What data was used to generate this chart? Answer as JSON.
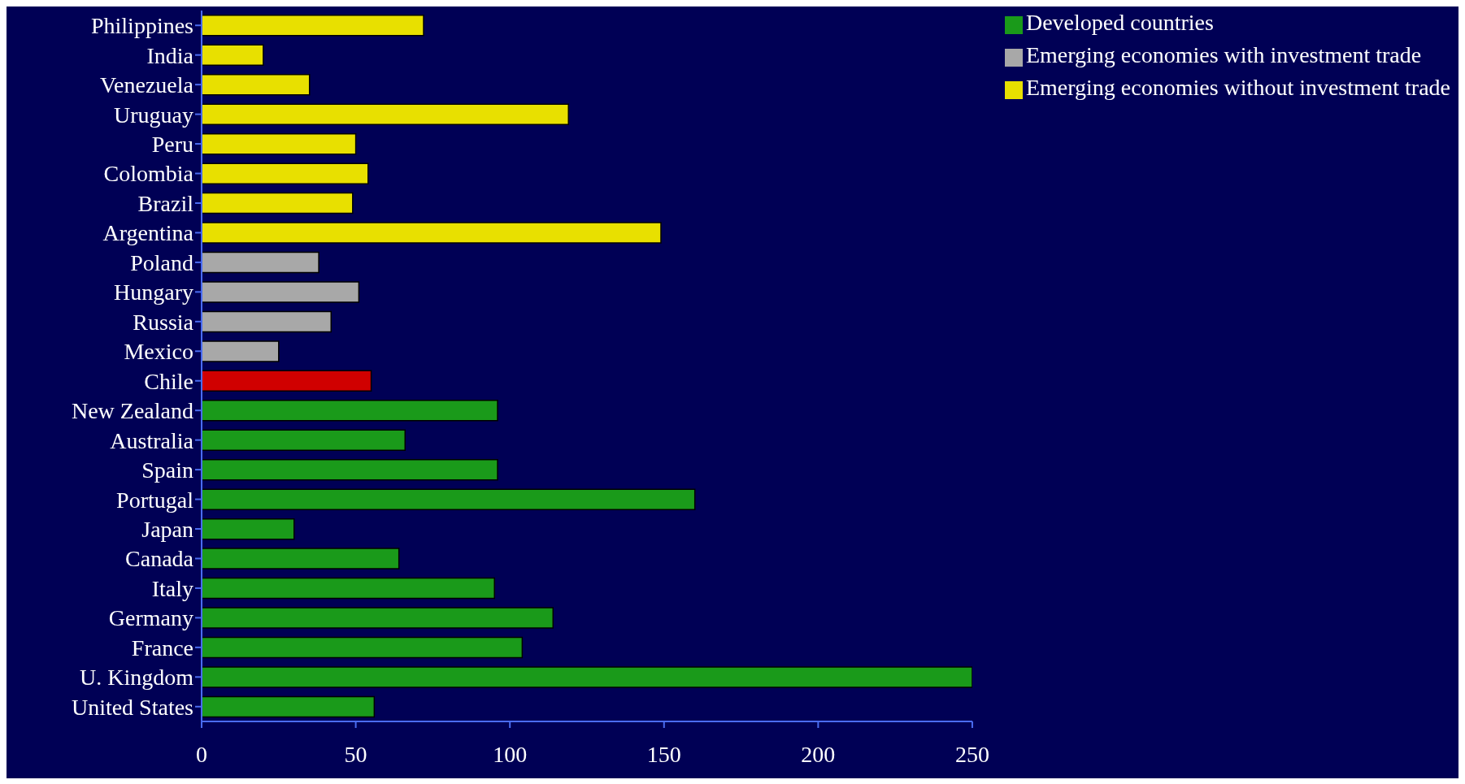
{
  "chart_data": {
    "type": "bar",
    "orientation": "horizontal",
    "stacked": true,
    "legend": "top right",
    "grid": false,
    "categories": [
      "Philippines",
      "India",
      "Venezuela",
      "Uruguay",
      "Peru",
      "Colombia",
      "Brazil",
      "Argentina",
      "Poland",
      "Hungary",
      "Russia",
      "Mexico",
      "Chile",
      "New Zealand",
      "Australia",
      "Spain",
      "Portugal",
      "Japan",
      "Canada",
      "Italy",
      "Germany",
      "France",
      "U. Kingdom",
      "United States"
    ],
    "xlim": [
      0,
      250
    ],
    "xticks": [
      0,
      50,
      100,
      150,
      200,
      250
    ],
    "series": [
      {
        "name": "Developed countries",
        "color": "#1a9a1a",
        "values": [
          null,
          null,
          null,
          null,
          null,
          null,
          null,
          null,
          null,
          null,
          null,
          null,
          null,
          96,
          66,
          96,
          160,
          30,
          64,
          95,
          114,
          104,
          250,
          56
        ]
      },
      {
        "name": "Emerging economies with investment trade",
        "color": "#a8a8a8",
        "values": [
          null,
          null,
          null,
          null,
          null,
          null,
          null,
          null,
          38,
          51,
          42,
          25,
          null,
          null,
          null,
          null,
          null,
          null,
          null,
          null,
          null,
          null,
          null,
          null
        ]
      },
      {
        "name": "Emerging economies without investment trade",
        "color": "#e8e000",
        "values": [
          72,
          20,
          35,
          119,
          50,
          54,
          49,
          149,
          null,
          null,
          null,
          null,
          null,
          null,
          null,
          null,
          null,
          null,
          null,
          null,
          null,
          null,
          null,
          null
        ]
      },
      {
        "color": "#d00000",
        "values": [
          null,
          null,
          null,
          null,
          null,
          null,
          null,
          null,
          null,
          null,
          null,
          null,
          55,
          null,
          null,
          null,
          null,
          null,
          null,
          null,
          null,
          null,
          null,
          null
        ]
      }
    ]
  }
}
